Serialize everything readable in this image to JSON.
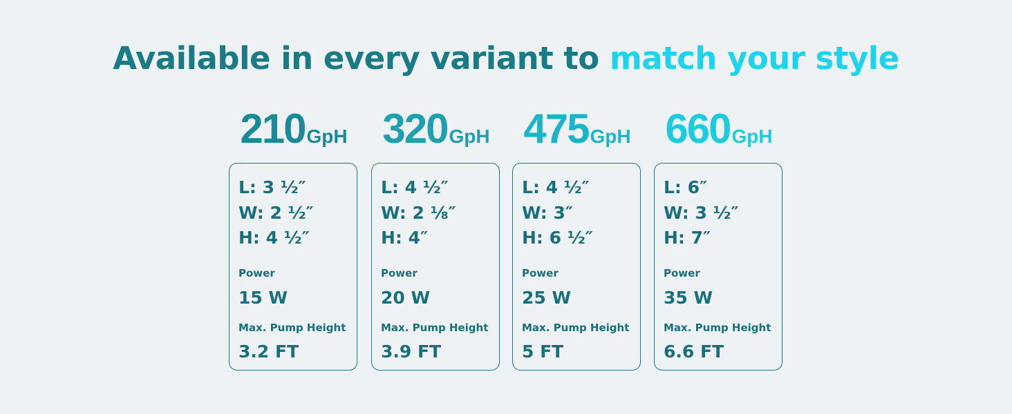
{
  "header": {
    "title_part1": "Available in every variant to",
    "title_part2": "match your style"
  },
  "variants": [
    {
      "flow": "210",
      "unit": "GpH",
      "dimensions": [
        "L: 3 ½″",
        "W: 2 ½″",
        "H: 4 ½″"
      ],
      "power_label": "Power",
      "power": "15 W",
      "height_label": "Max. Pump Height",
      "height": "3.2 FT"
    },
    {
      "flow": "320",
      "unit": "GpH",
      "dimensions": [
        "L: 4 ½″",
        "W: 2 ⅛″",
        "H: 4″"
      ],
      "power_label": "Power",
      "power": "20 W",
      "height_label": "Max. Pump Height",
      "height": "3.9 FT"
    },
    {
      "flow": "475",
      "unit": "GpH",
      "dimensions": [
        "L: 4 ½″",
        "W: 3″",
        "H: 6 ½″"
      ],
      "power_label": "Power",
      "power": "25 W",
      "height_label": "Max. Pump Height",
      "height": "5 FT"
    },
    {
      "flow": "660",
      "unit": "GpH",
      "dimensions": [
        "L: 6″",
        "W: 3 ½″",
        "H: 7″"
      ],
      "power_label": "Power",
      "power": "35 W",
      "height_label": "Max. Pump Height",
      "height": "6.6 FT"
    }
  ]
}
